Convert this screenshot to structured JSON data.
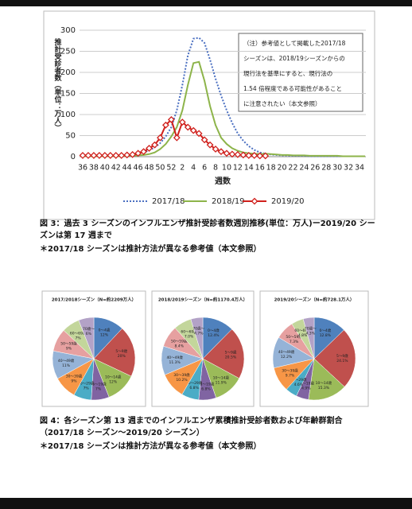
{
  "chart_data": [
    {
      "type": "line",
      "y_label": "推計受診者数（単位：万人）",
      "x_label": "週数",
      "annotation": [
        "（注）参考値として掲載した2017/18",
        "シーズンは、2018/19シーズンからの",
        "現行法を基準にすると、現行法の",
        "1.54 倍程度である可能性があること",
        "に注意されたい（本文参照）"
      ],
      "categories": [
        36,
        null,
        38,
        null,
        40,
        null,
        42,
        null,
        44,
        null,
        46,
        null,
        48,
        null,
        50,
        null,
        52,
        null,
        2,
        null,
        4,
        null,
        6,
        null,
        8,
        null,
        10,
        null,
        12,
        null,
        14,
        null,
        16,
        null,
        18,
        null,
        20,
        null,
        22,
        null,
        24,
        null,
        26,
        null,
        28,
        null,
        30,
        null,
        32,
        null,
        34,
        null
      ],
      "ylim": [
        0,
        300
      ],
      "yticks": [
        0,
        50,
        100,
        150,
        200,
        250,
        300
      ],
      "grid": true,
      "series": [
        {
          "name": "2017/18",
          "color": "#4a6fc1",
          "dashed": true,
          "values": [
            1,
            1,
            1,
            1,
            2,
            2,
            3,
            3,
            4,
            5,
            7,
            10,
            15,
            22,
            32,
            48,
            70,
            110,
            170,
            240,
            280,
            282,
            270,
            230,
            185,
            145,
            110,
            80,
            55,
            38,
            25,
            16,
            10,
            7,
            5,
            4,
            3,
            3,
            2,
            2,
            2,
            1,
            1,
            1,
            1,
            1,
            1,
            1,
            1,
            1,
            1,
            1
          ]
        },
        {
          "name": "2018/19",
          "color": "#8db44a",
          "values": [
            1,
            1,
            1,
            1,
            1,
            1,
            1,
            1,
            2,
            2,
            3,
            4,
            6,
            10,
            18,
            30,
            48,
            70,
            110,
            170,
            222,
            225,
            180,
            120,
            75,
            45,
            30,
            20,
            14,
            10,
            8,
            7,
            6,
            7,
            6,
            5,
            4,
            4,
            3,
            3,
            3,
            2,
            2,
            2,
            2,
            2,
            2,
            1,
            1,
            1,
            1,
            1
          ]
        },
        {
          "name": "2019/20",
          "color": "#d0201c",
          "marker": "diamond",
          "values": [
            3,
            3,
            3,
            3,
            3,
            3,
            3,
            3,
            4,
            5,
            8,
            12,
            20,
            28,
            45,
            75,
            88,
            45,
            82,
            70,
            62,
            55,
            40,
            28,
            18,
            12,
            8,
            6,
            5,
            4,
            3,
            3,
            2,
            2,
            null,
            null,
            null,
            null,
            null,
            null,
            null,
            null,
            null,
            null,
            null,
            null,
            null,
            null,
            null,
            null,
            null,
            null
          ]
        }
      ]
    },
    {
      "type": "pie",
      "title": "2017/2018シーズン（N=約2209万人）",
      "categories": [
        "0〜4歳",
        "5〜9歳",
        "10〜14歳",
        "15〜19歳",
        "20〜29歳",
        "30〜39歳",
        "40〜49歳",
        "50〜59歳",
        "60〜69歳",
        "70歳〜"
      ],
      "values": [
        12,
        20,
        12,
        7,
        7,
        9,
        11,
        9,
        7,
        6
      ],
      "value_labels": [
        "12%",
        "20%",
        "12%",
        "7%",
        "7%",
        "9%",
        "11%",
        "9%",
        "7%",
        "6%"
      ],
      "colors": [
        "#4f81bd",
        "#c0504d",
        "#9bbb59",
        "#8064a2",
        "#4bacc6",
        "#f79646",
        "#95b3d7",
        "#e6a0a0",
        "#c3d69b",
        "#b3a2c7"
      ]
    },
    {
      "type": "pie",
      "title": "2018/2019シーズン（N=約1170.4万人）",
      "categories": [
        "0〜4歳",
        "5〜9歳",
        "10〜14歳",
        "15〜19歳",
        "20〜29歳",
        "30〜39歳",
        "40〜49歳",
        "50〜59歳",
        "60〜69歳",
        "70歳〜"
      ],
      "values": [
        12.4,
        20.5,
        11.9,
        6.8,
        6.8,
        10.2,
        11.3,
        8.4,
        7.0,
        4.7
      ],
      "value_labels": [
        "12.4%",
        "20.5%",
        "11.9%",
        "6.8%",
        "6.8%",
        "10.2%",
        "11.3%",
        "8.4%",
        "7.0%",
        "4.7%"
      ],
      "colors": [
        "#4f81bd",
        "#c0504d",
        "#9bbb59",
        "#8064a2",
        "#4bacc6",
        "#f79646",
        "#95b3d7",
        "#e6a0a0",
        "#c3d69b",
        "#b3a2c7"
      ]
    },
    {
      "type": "pie",
      "title": "2019/20シーズン（N=約728.1万人）",
      "categories": [
        "0〜4歳",
        "5〜9歳",
        "10〜14歳",
        "15〜19歳",
        "20〜29歳",
        "30〜39歳",
        "40〜49歳",
        "50〜59歳",
        "60〜69歳",
        "70歳〜"
      ],
      "values": [
        12.8,
        24.1,
        15.3,
        4.9,
        4.6,
        9.7,
        12.2,
        7.3,
        4.8,
        4.3
      ],
      "value_labels": [
        "12.8%",
        "24.1%",
        "15.3%",
        "4.9%",
        "4.6%",
        "9.7%",
        "12.2%",
        "7.3%",
        "4.8%",
        "4.3%"
      ],
      "colors": [
        "#4f81bd",
        "#c0504d",
        "#9bbb59",
        "#8064a2",
        "#4bacc6",
        "#f79646",
        "#95b3d7",
        "#e6a0a0",
        "#c3d69b",
        "#b3a2c7"
      ]
    }
  ],
  "captions": [
    "図 3：過去 3 シーズンのインフルエンザ推計受診者数週別推移(単位：万人)ー2019/20 シーズンは第 17 週まで",
    "＊2017/18 シーズンは推計方法が異なる参考値（本文参照）",
    "図 4：各シーズン第 13 週までのインフルエンザ累積推計受診者数および年齢群割合（2017/18 シーズン〜2019/20 シーズン）",
    "＊2017/18 シーズンは推計方法が異なる参考値（本文参照）"
  ]
}
